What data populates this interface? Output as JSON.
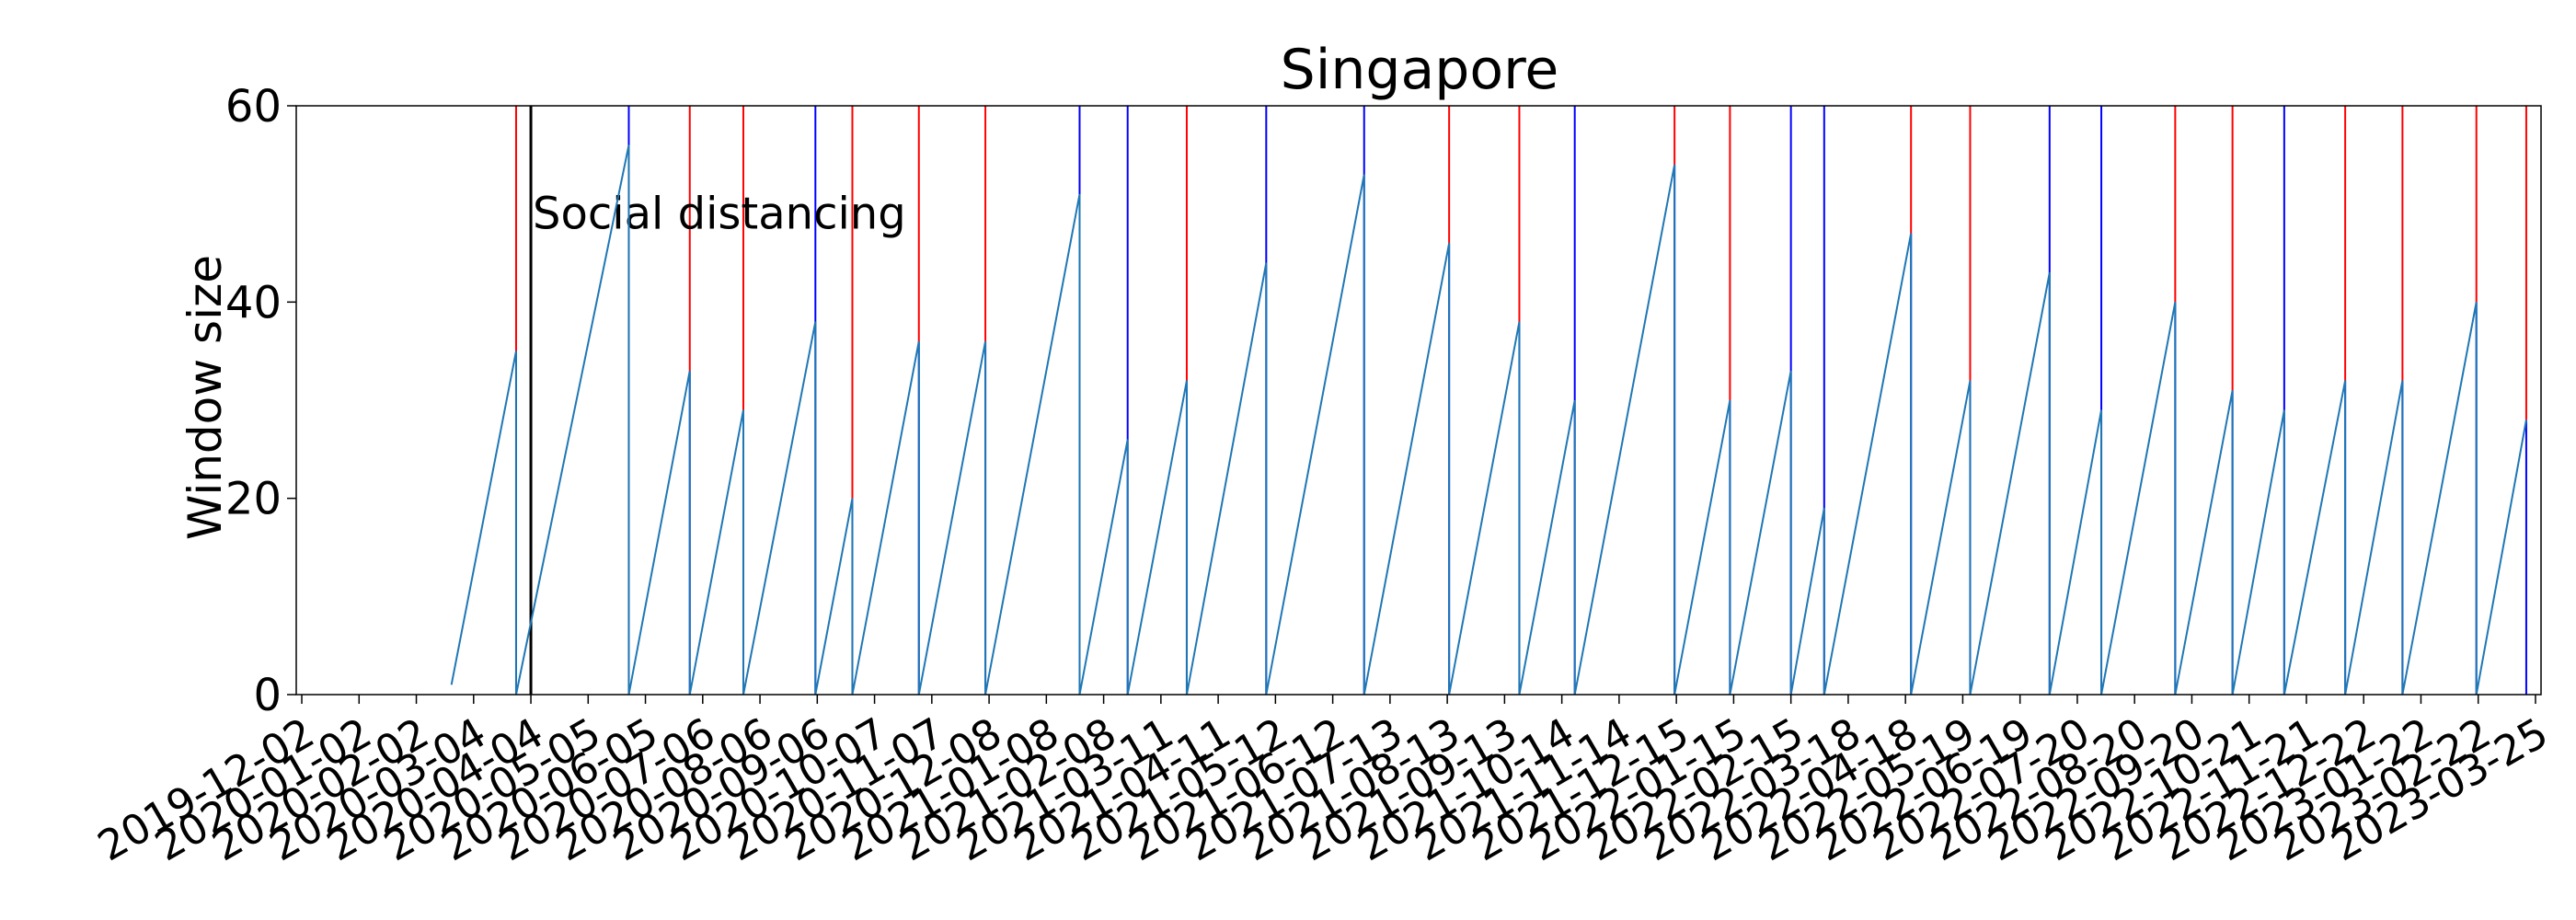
{
  "chart_data": {
    "type": "line",
    "title": "Singapore",
    "xlabel": "",
    "ylabel": "Window size",
    "ylim": [
      0,
      60
    ],
    "y_ticks": [
      0,
      20,
      40,
      60
    ],
    "x_tick_labels": [
      "2019-12-02",
      "2020-01-02",
      "2020-02-02",
      "2020-03-04",
      "2020-04-04",
      "2020-05-05",
      "2020-06-05",
      "2020-07-06",
      "2020-08-06",
      "2020-09-06",
      "2020-10-07",
      "2020-11-07",
      "2020-12-08",
      "2021-01-08",
      "2021-02-08",
      "2021-03-11",
      "2021-04-11",
      "2021-05-12",
      "2021-06-12",
      "2021-07-13",
      "2021-08-13",
      "2021-09-13",
      "2021-10-14",
      "2021-11-14",
      "2021-12-15",
      "2022-01-15",
      "2022-02-15",
      "2022-03-18",
      "2022-04-18",
      "2022-05-19",
      "2022-06-19",
      "2022-07-20",
      "2022-08-20",
      "2022-09-20",
      "2022-10-21",
      "2022-11-21",
      "2022-12-22",
      "2023-01-22",
      "2023-02-22",
      "2023-03-25"
    ],
    "grid": false,
    "colors": {
      "series": "#1f77b4",
      "marker_red": "#ff0000",
      "marker_blue": "#0000ff",
      "event_line": "#000000"
    },
    "annotation": {
      "text": "Social distancing",
      "date": "2020-04-04"
    },
    "series": [
      {
        "points": [
          [
            "2020-02-21",
            1
          ],
          [
            "2020-03-27",
            35
          ],
          [
            "2020-03-27",
            0
          ],
          [
            "2020-05-27",
            56
          ],
          [
            "2020-05-27",
            0
          ],
          [
            "2020-06-29",
            33
          ],
          [
            "2020-06-29",
            0
          ],
          [
            "2020-07-28",
            29
          ],
          [
            "2020-07-28",
            0
          ],
          [
            "2020-09-05",
            38
          ],
          [
            "2020-09-05",
            0
          ],
          [
            "2020-09-25",
            20
          ],
          [
            "2020-09-25",
            0
          ],
          [
            "2020-10-31",
            36
          ],
          [
            "2020-10-31",
            0
          ],
          [
            "2020-12-06",
            36
          ],
          [
            "2020-12-06",
            0
          ],
          [
            "2021-01-26",
            51
          ],
          [
            "2021-01-26",
            0
          ],
          [
            "2021-02-21",
            26
          ],
          [
            "2021-02-21",
            0
          ],
          [
            "2021-03-25",
            32
          ],
          [
            "2021-03-25",
            0
          ],
          [
            "2021-05-07",
            44
          ],
          [
            "2021-05-07",
            0
          ],
          [
            "2021-06-29",
            53
          ],
          [
            "2021-06-29",
            0
          ],
          [
            "2021-08-14",
            46
          ],
          [
            "2021-08-14",
            0
          ],
          [
            "2021-09-21",
            38
          ],
          [
            "2021-09-21",
            0
          ],
          [
            "2021-10-21",
            30
          ],
          [
            "2021-10-21",
            0
          ],
          [
            "2021-12-14",
            54
          ],
          [
            "2021-12-14",
            0
          ],
          [
            "2022-01-13",
            30
          ],
          [
            "2022-01-13",
            0
          ],
          [
            "2022-02-15",
            33
          ],
          [
            "2022-02-15",
            0
          ],
          [
            "2022-03-05",
            19
          ],
          [
            "2022-03-05",
            0
          ],
          [
            "2022-04-21",
            47
          ],
          [
            "2022-04-21",
            0
          ],
          [
            "2022-05-23",
            32
          ],
          [
            "2022-05-23",
            0
          ],
          [
            "2022-07-05",
            43
          ],
          [
            "2022-07-05",
            0
          ],
          [
            "2022-08-02",
            29
          ],
          [
            "2022-08-02",
            0
          ],
          [
            "2022-09-11",
            40
          ],
          [
            "2022-09-11",
            0
          ],
          [
            "2022-10-12",
            31
          ],
          [
            "2022-10-12",
            0
          ],
          [
            "2022-11-09",
            29
          ],
          [
            "2022-11-09",
            0
          ],
          [
            "2022-12-12",
            32
          ],
          [
            "2022-12-12",
            0
          ],
          [
            "2023-01-12",
            32
          ],
          [
            "2023-01-12",
            0
          ],
          [
            "2023-02-21",
            40
          ],
          [
            "2023-02-21",
            0
          ],
          [
            "2023-03-20",
            28
          ]
        ]
      }
    ],
    "vertical_markers": [
      {
        "date": "2020-03-27",
        "split": 35,
        "upper": "red",
        "lower": "blue"
      },
      {
        "date": "2020-05-27",
        "split": 56,
        "upper": "blue",
        "lower": "blue"
      },
      {
        "date": "2020-06-29",
        "split": 33,
        "upper": "red",
        "lower": "blue"
      },
      {
        "date": "2020-07-28",
        "split": 29,
        "upper": "red",
        "lower": "blue"
      },
      {
        "date": "2020-09-05",
        "split": 38,
        "upper": "blue",
        "lower": "blue"
      },
      {
        "date": "2020-09-25",
        "split": 20,
        "upper": "red",
        "lower": "blue"
      },
      {
        "date": "2020-10-31",
        "split": 36,
        "upper": "red",
        "lower": "blue"
      },
      {
        "date": "2020-12-06",
        "split": 36,
        "upper": "red",
        "lower": "blue"
      },
      {
        "date": "2021-01-26",
        "split": 51,
        "upper": "blue",
        "lower": "blue"
      },
      {
        "date": "2021-02-21",
        "split": 26,
        "upper": "blue",
        "lower": "blue"
      },
      {
        "date": "2021-03-25",
        "split": 32,
        "upper": "red",
        "lower": "blue"
      },
      {
        "date": "2021-05-07",
        "split": 44,
        "upper": "blue",
        "lower": "blue"
      },
      {
        "date": "2021-06-29",
        "split": 53,
        "upper": "blue",
        "lower": "blue"
      },
      {
        "date": "2021-08-14",
        "split": 46,
        "upper": "red",
        "lower": "blue"
      },
      {
        "date": "2021-09-21",
        "split": 38,
        "upper": "red",
        "lower": "blue"
      },
      {
        "date": "2021-10-21",
        "split": 30,
        "upper": "blue",
        "lower": "blue"
      },
      {
        "date": "2021-12-14",
        "split": 54,
        "upper": "red",
        "lower": "blue"
      },
      {
        "date": "2022-01-13",
        "split": 30,
        "upper": "red",
        "lower": "blue"
      },
      {
        "date": "2022-02-15",
        "split": 33,
        "upper": "blue",
        "lower": "blue"
      },
      {
        "date": "2022-03-05",
        "split": 19,
        "upper": "blue",
        "lower": "blue"
      },
      {
        "date": "2022-04-21",
        "split": 47,
        "upper": "red",
        "lower": "blue"
      },
      {
        "date": "2022-05-23",
        "split": 32,
        "upper": "red",
        "lower": "blue"
      },
      {
        "date": "2022-07-05",
        "split": 43,
        "upper": "blue",
        "lower": "blue"
      },
      {
        "date": "2022-08-02",
        "split": 29,
        "upper": "blue",
        "lower": "blue"
      },
      {
        "date": "2022-09-11",
        "split": 40,
        "upper": "red",
        "lower": "blue"
      },
      {
        "date": "2022-10-12",
        "split": 31,
        "upper": "red",
        "lower": "blue"
      },
      {
        "date": "2022-11-09",
        "split": 29,
        "upper": "blue",
        "lower": "blue"
      },
      {
        "date": "2022-12-12",
        "split": 32,
        "upper": "red",
        "lower": "blue"
      },
      {
        "date": "2023-01-12",
        "split": 32,
        "upper": "red",
        "lower": "blue"
      },
      {
        "date": "2023-02-21",
        "split": 40,
        "upper": "red",
        "lower": "blue"
      },
      {
        "date": "2023-03-20",
        "split": 28,
        "upper": "red",
        "lower": "blue"
      }
    ]
  }
}
